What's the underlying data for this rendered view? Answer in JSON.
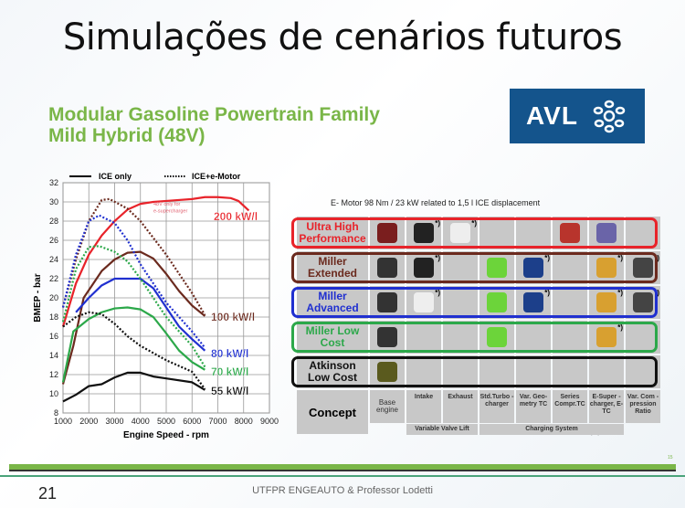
{
  "slide": {
    "title": "Simulações de cenários futuros",
    "subtitle_line1": "Modular Gasoline Powertrain Family",
    "subtitle_line2": "Mild Hybrid (48V)",
    "logo": "AVL",
    "page_number": "21",
    "footer": "UTFPR ENGEAUTO & Professor Lodetti",
    "inner_page": "15"
  },
  "chart_data": {
    "type": "line",
    "xlabel": "Engine Speed - rpm",
    "ylabel": "BMEP - bar",
    "xlim": [
      1000,
      9000
    ],
    "ylim": [
      8,
      32
    ],
    "xticks": [
      1000,
      2000,
      3000,
      4000,
      5000,
      6000,
      7000,
      8000,
      9000
    ],
    "yticks": [
      8,
      10,
      12,
      14,
      16,
      18,
      20,
      22,
      24,
      26,
      28,
      30,
      32
    ],
    "grid": true,
    "legend": {
      "placement": "top",
      "solid": "ICE only",
      "dotted": "ICE+e-Motor"
    },
    "annotation": "48V only for e-supercharger",
    "series": [
      {
        "name": "200 kW/l",
        "color": "#e8232a",
        "style": "solid",
        "points": [
          [
            1000,
            17
          ],
          [
            1500,
            21.5
          ],
          [
            2000,
            24.5
          ],
          [
            2500,
            26.5
          ],
          [
            3000,
            28
          ],
          [
            3500,
            29.2
          ],
          [
            4000,
            29.8
          ],
          [
            4500,
            30
          ],
          [
            5000,
            30.1
          ],
          [
            6000,
            30.3
          ],
          [
            6500,
            30.5
          ],
          [
            7000,
            30.5
          ],
          [
            7500,
            30.4
          ],
          [
            7800,
            30.1
          ],
          [
            8200,
            29.1
          ]
        ]
      },
      {
        "color": "#6b2a1e",
        "style": "dotted",
        "points": [
          [
            1000,
            19
          ],
          [
            1500,
            24
          ],
          [
            2000,
            28
          ],
          [
            2500,
            30.2
          ],
          [
            2800,
            30.3
          ],
          [
            3500,
            29.3
          ],
          [
            4000,
            28
          ],
          [
            5000,
            24.5
          ],
          [
            6000,
            20.5
          ],
          [
            6500,
            18.2
          ]
        ]
      },
      {
        "name": "100 kW/l",
        "color": "#6b2a1e",
        "style": "solid",
        "points": [
          [
            1000,
            11
          ],
          [
            1400,
            15
          ],
          [
            1800,
            20
          ],
          [
            2500,
            22.8
          ],
          [
            3000,
            24
          ],
          [
            3500,
            24.7
          ],
          [
            4000,
            24.8
          ],
          [
            4500,
            24.1
          ],
          [
            5000,
            22.5
          ],
          [
            5500,
            20.7
          ],
          [
            6000,
            19.2
          ],
          [
            6500,
            18.1
          ]
        ]
      },
      {
        "color": "#2030d0",
        "style": "dotted",
        "points": [
          [
            1000,
            19
          ],
          [
            1500,
            24.5
          ],
          [
            2000,
            28
          ],
          [
            2400,
            28.6
          ],
          [
            3000,
            27.8
          ],
          [
            3500,
            26
          ],
          [
            4000,
            23.5
          ],
          [
            5000,
            19.5
          ],
          [
            6000,
            16.5
          ],
          [
            6500,
            14.8
          ]
        ]
      },
      {
        "name": "80 kW/l",
        "color": "#2030d0",
        "style": "solid",
        "points": [
          [
            1500,
            18.5
          ],
          [
            2000,
            20
          ],
          [
            2500,
            21.3
          ],
          [
            3000,
            22
          ],
          [
            3500,
            22
          ],
          [
            4000,
            22
          ],
          [
            4500,
            21
          ],
          [
            5000,
            19
          ],
          [
            5500,
            17
          ],
          [
            6000,
            15.7
          ],
          [
            6500,
            14.5
          ]
        ]
      },
      {
        "color": "#2ca84a",
        "style": "dotted",
        "points": [
          [
            1000,
            17.5
          ],
          [
            1500,
            23
          ],
          [
            2000,
            25.3
          ],
          [
            2400,
            25.4
          ],
          [
            3000,
            24.8
          ],
          [
            3500,
            23.8
          ],
          [
            4000,
            22
          ],
          [
            5000,
            18
          ],
          [
            6000,
            15
          ],
          [
            6500,
            12.8
          ]
        ]
      },
      {
        "name": "70 kW/l",
        "color": "#2ca84a",
        "style": "solid",
        "points": [
          [
            1000,
            11.2
          ],
          [
            1400,
            16.5
          ],
          [
            2000,
            17.8
          ],
          [
            2500,
            18.5
          ],
          [
            3000,
            18.9
          ],
          [
            3500,
            19
          ],
          [
            4000,
            18.8
          ],
          [
            4500,
            18
          ],
          [
            5000,
            16.3
          ],
          [
            5500,
            14.5
          ],
          [
            6000,
            13.3
          ],
          [
            6500,
            12.5
          ]
        ]
      },
      {
        "color": "#111111",
        "style": "dotted",
        "points": [
          [
            1000,
            17
          ],
          [
            1500,
            18
          ],
          [
            2000,
            18.5
          ],
          [
            2500,
            18.3
          ],
          [
            3000,
            17.3
          ],
          [
            3500,
            16
          ],
          [
            4000,
            15
          ],
          [
            5000,
            13.5
          ],
          [
            6000,
            12.3
          ],
          [
            6500,
            10.5
          ]
        ]
      },
      {
        "name": "55 kW/l",
        "color": "#111111",
        "style": "solid",
        "points": [
          [
            1000,
            9.2
          ],
          [
            1500,
            9.9
          ],
          [
            2000,
            10.8
          ],
          [
            2500,
            11
          ],
          [
            3000,
            11.7
          ],
          [
            3500,
            12.2
          ],
          [
            4000,
            12.2
          ],
          [
            4500,
            11.8
          ],
          [
            5000,
            11.6
          ],
          [
            6000,
            11.2
          ],
          [
            6500,
            10.4
          ]
        ]
      }
    ]
  },
  "matrix": {
    "title": "E- Motor 98 Nm / 23 kW related to 1,5 l ICE displacement",
    "optional_note": "*) optional",
    "optional_mark": "*)",
    "concept_label": "Concept",
    "columns": [
      "Base engine",
      "Intake",
      "Exhaust",
      "Std.Turbo - charger",
      "Var. Geo- metry TC",
      "Series Compr.TC",
      "E-Super - charger, E-TC",
      "Var. Com - pression Ratio"
    ],
    "groups": [
      "Variable Valve Lift",
      "Charging System"
    ],
    "rows": [
      {
        "label": "Ultra High Performance",
        "color": "#e8232a",
        "cells": [
          {
            "icon": "engine-icon",
            "c": "#7a1e1e"
          },
          {
            "icon": "valve-icon",
            "c": "#222",
            "opt": true
          },
          {
            "icon": "valve-icon",
            "c": "#eee",
            "opt": true
          },
          null,
          null,
          {
            "icon": "compressor-icon",
            "c": "#b8342c"
          },
          {
            "icon": "e-supercharger-icon",
            "c": "#6a64a8"
          },
          null
        ]
      },
      {
        "label": "Miller Extended",
        "color": "#6b2a1e",
        "cells": [
          {
            "icon": "engine-icon",
            "c": "#333"
          },
          {
            "icon": "valve-icon",
            "c": "#222",
            "opt": true
          },
          null,
          {
            "icon": "turbo-icon",
            "c": "#6cd43a"
          },
          {
            "icon": "vgt-icon",
            "c": "#1c3f8a",
            "opt": true
          },
          null,
          {
            "icon": "e-turbo-icon",
            "c": "#d8a030",
            "opt": true
          },
          {
            "icon": "conrod-icon",
            "c": "#444",
            "opt": true
          }
        ]
      },
      {
        "label": "Miller Advanced",
        "color": "#2030d0",
        "cells": [
          {
            "icon": "engine-icon",
            "c": "#333"
          },
          {
            "icon": "valve-icon",
            "c": "#eee",
            "opt": true
          },
          null,
          {
            "icon": "turbo-icon",
            "c": "#6cd43a"
          },
          {
            "icon": "vgt-icon",
            "c": "#1c3f8a",
            "opt": true
          },
          null,
          {
            "icon": "e-turbo-icon",
            "c": "#d8a030",
            "opt": true
          },
          {
            "icon": "conrod-icon",
            "c": "#444",
            "opt": true
          }
        ]
      },
      {
        "label": "Miller Low Cost",
        "color": "#2ca84a",
        "cells": [
          {
            "icon": "engine-icon",
            "c": "#333"
          },
          null,
          null,
          {
            "icon": "turbo-icon",
            "c": "#6cd43a"
          },
          null,
          null,
          {
            "icon": "e-turbo-icon",
            "c": "#d8a030",
            "opt": true
          },
          null
        ]
      },
      {
        "label": "Atkinson Low Cost",
        "color": "#111111",
        "cells": [
          {
            "icon": "engine-icon",
            "c": "#5a5a1e"
          },
          null,
          null,
          null,
          null,
          null,
          null,
          null
        ]
      }
    ]
  }
}
